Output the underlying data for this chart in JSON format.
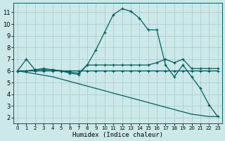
{
  "background_color": "#cce8e8",
  "grid_color": "#aacfcf",
  "line_color": "#005f5f",
  "xlabel": "Humidex (Indice chaleur)",
  "x_ticks": [
    0,
    1,
    2,
    3,
    4,
    5,
    6,
    7,
    8,
    9,
    10,
    11,
    12,
    13,
    14,
    15,
    16,
    17,
    18,
    19,
    20,
    21,
    22,
    23
  ],
  "y_ticks": [
    2,
    3,
    4,
    5,
    6,
    7,
    8,
    9,
    10,
    11
  ],
  "ylim": [
    1.5,
    11.8
  ],
  "xlim": [
    -0.5,
    23.5
  ],
  "series1_x": [
    0,
    1,
    2,
    3,
    4,
    5,
    6,
    7,
    8,
    9,
    10,
    11,
    12,
    13,
    14,
    15,
    16,
    17,
    18,
    19,
    20,
    21,
    22,
    23
  ],
  "series1_y": [
    6.0,
    7.0,
    6.1,
    6.2,
    6.1,
    6.0,
    5.9,
    5.8,
    6.5,
    7.8,
    9.3,
    10.8,
    11.3,
    11.1,
    10.5,
    9.5,
    9.5,
    6.5,
    5.5,
    6.5,
    5.5,
    4.5,
    3.1,
    2.1
  ],
  "series2_x": [
    0,
    1,
    2,
    3,
    4,
    5,
    6,
    7,
    8,
    9,
    10,
    11,
    12,
    13,
    14,
    15,
    16,
    17,
    18,
    19,
    20,
    21,
    22,
    23
  ],
  "series2_y": [
    6.0,
    6.0,
    6.1,
    6.1,
    6.1,
    6.0,
    6.0,
    6.0,
    6.0,
    6.0,
    6.0,
    6.0,
    6.0,
    6.0,
    6.0,
    6.0,
    6.0,
    6.0,
    6.0,
    6.0,
    6.0,
    6.0,
    6.0,
    6.0
  ],
  "series3_x": [
    0,
    1,
    2,
    3,
    4,
    5,
    6,
    7,
    8,
    9,
    10,
    11,
    12,
    13,
    14,
    15,
    16,
    17,
    18,
    19,
    20,
    21,
    22,
    23
  ],
  "series3_y": [
    6.0,
    6.0,
    6.0,
    6.0,
    6.0,
    6.0,
    5.8,
    5.7,
    6.5,
    6.5,
    6.5,
    6.5,
    6.5,
    6.5,
    6.5,
    6.5,
    6.7,
    7.0,
    6.7,
    7.0,
    6.2,
    6.2,
    6.2,
    6.2
  ],
  "series4_x": [
    0,
    4,
    5,
    6,
    7,
    8,
    9,
    10,
    11,
    12,
    13,
    14,
    15,
    16,
    17,
    18,
    19,
    20,
    21,
    22,
    23
  ],
  "series4_y": [
    6.0,
    5.5,
    5.3,
    5.1,
    4.9,
    4.7,
    4.5,
    4.3,
    4.1,
    3.9,
    3.7,
    3.5,
    3.3,
    3.1,
    2.9,
    2.7,
    2.5,
    2.3,
    2.2,
    2.1,
    2.1
  ]
}
